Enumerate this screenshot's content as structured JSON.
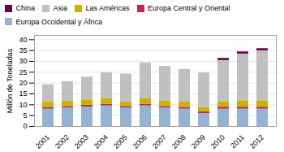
{
  "chart_data": {
    "type": "bar",
    "stacked": true,
    "categories": [
      "2001",
      "2002",
      "2003",
      "2004",
      "2005",
      "2006",
      "2007",
      "2008",
      "2009",
      "2010",
      "2011",
      "2012"
    ],
    "series": [
      {
        "name": "Europa Occidental y África",
        "color": "#92b4d2",
        "values": [
          8.0,
          8.5,
          9.0,
          9.5,
          8.5,
          9.5,
          8.5,
          8.0,
          6.0,
          8.0,
          8.0,
          8.0
        ]
      },
      {
        "name": "Europa Central y Oriental",
        "color": "#c9215a",
        "values": [
          0.7,
          0.7,
          0.8,
          0.8,
          0.7,
          0.8,
          0.7,
          0.8,
          0.7,
          0.9,
          0.9,
          0.9
        ]
      },
      {
        "name": "Las Américas",
        "color": "#c8b400",
        "values": [
          2.5,
          2.5,
          2.5,
          2.5,
          2.0,
          2.5,
          2.5,
          2.5,
          2.0,
          2.5,
          3.0,
          3.0
        ]
      },
      {
        "name": "Asia",
        "color": "#c0c0c0",
        "values": [
          8.0,
          9.0,
          10.5,
          12.0,
          13.0,
          16.5,
          16.0,
          15.0,
          16.0,
          19.0,
          21.5,
          23.0
        ]
      },
      {
        "name": "China",
        "color": "#6b0050",
        "values": [
          0.0,
          0.0,
          0.0,
          0.0,
          0.0,
          0.0,
          0.0,
          0.0,
          0.0,
          1.0,
          1.0,
          1.0
        ]
      }
    ],
    "ylabel": "Millón de Toneladas",
    "ylim": [
      0,
      42
    ],
    "yticks": [
      0,
      5,
      10,
      15,
      20,
      25,
      30,
      35,
      40
    ],
    "grid": true,
    "legend": "top"
  }
}
